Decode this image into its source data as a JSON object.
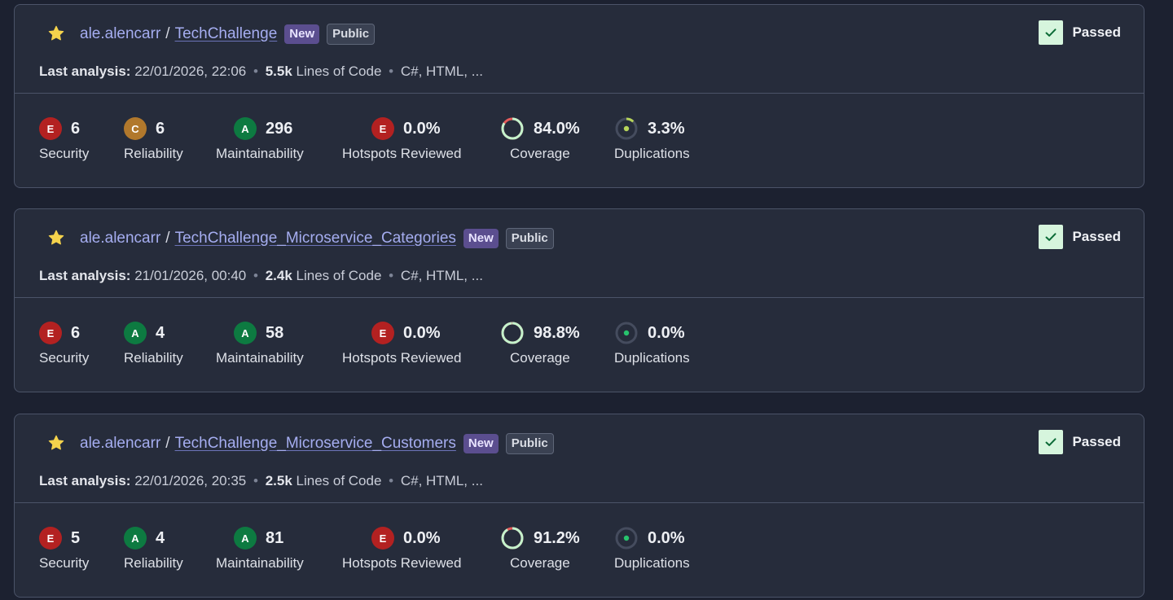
{
  "labels": {
    "last_analysis": "Last analysis:",
    "lines_of_code": "Lines of Code",
    "security": "Security",
    "reliability": "Reliability",
    "maintainability": "Maintainability",
    "hotspots": "Hotspots Reviewed",
    "coverage": "Coverage",
    "duplications": "Duplications",
    "badge_new": "New",
    "badge_public": "Public",
    "gate": "Passed",
    "slash": "/",
    "dot": "•"
  },
  "colors": {
    "rating_E": "#b32121",
    "rating_C": "#b1782c",
    "rating_A": "#0d7a41",
    "gate_passed": "#d6f5dd",
    "coverage_ring": "#c4f2cc",
    "coverage_uncovered": "#e45b5b",
    "duplication_mark": "#27c36d",
    "duplication_mark_warn": "#b7d45a"
  },
  "projects": [
    {
      "org": "ale.alencarr",
      "name": "TechChallenge",
      "date": "22/01/2026, 22:06",
      "loc": "5.5k",
      "languages": "C#, HTML, ...",
      "security": {
        "rating": "E",
        "value": "6"
      },
      "reliability": {
        "rating": "C",
        "value": "6"
      },
      "maintainability": {
        "rating": "A",
        "value": "296"
      },
      "hotspots": {
        "rating": "E",
        "value": "0.0%"
      },
      "coverage": {
        "value": "84.0%",
        "percent": 84.0
      },
      "duplications": {
        "value": "3.3%",
        "percent": 3.3
      }
    },
    {
      "org": "ale.alencarr",
      "name": "TechChallenge_Microservice_Categories",
      "date": "21/01/2026, 00:40",
      "loc": "2.4k",
      "languages": "C#, HTML, ...",
      "security": {
        "rating": "E",
        "value": "6"
      },
      "reliability": {
        "rating": "A",
        "value": "4"
      },
      "maintainability": {
        "rating": "A",
        "value": "58"
      },
      "hotspots": {
        "rating": "E",
        "value": "0.0%"
      },
      "coverage": {
        "value": "98.8%",
        "percent": 98.8
      },
      "duplications": {
        "value": "0.0%",
        "percent": 0.0
      }
    },
    {
      "org": "ale.alencarr",
      "name": "TechChallenge_Microservice_Customers",
      "date": "22/01/2026, 20:35",
      "loc": "2.5k",
      "languages": "C#, HTML, ...",
      "security": {
        "rating": "E",
        "value": "5"
      },
      "reliability": {
        "rating": "A",
        "value": "4"
      },
      "maintainability": {
        "rating": "A",
        "value": "81"
      },
      "hotspots": {
        "rating": "E",
        "value": "0.0%"
      },
      "coverage": {
        "value": "91.2%",
        "percent": 91.2
      },
      "duplications": {
        "value": "0.0%",
        "percent": 0.0
      }
    }
  ]
}
